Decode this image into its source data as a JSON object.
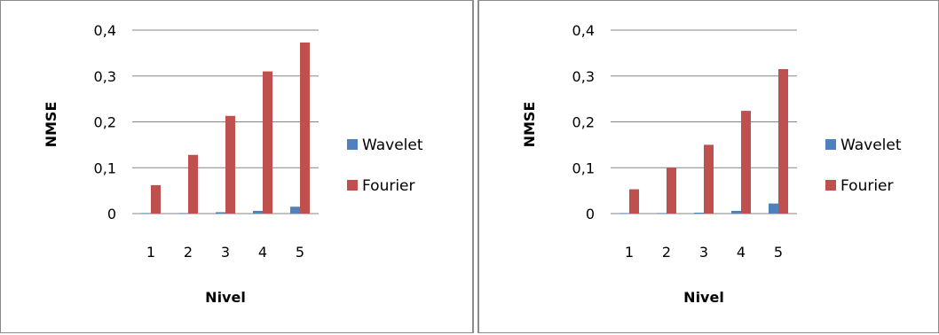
{
  "chart_data": [
    {
      "type": "bar",
      "title": "",
      "xlabel": "Nivel",
      "ylabel": "NMSE",
      "categories": [
        "1",
        "2",
        "3",
        "4",
        "5"
      ],
      "ylim": [
        0,
        0.4
      ],
      "yticks": [
        "0",
        "0,1",
        "0,2",
        "0,3",
        "0,4"
      ],
      "yticks_values": [
        0,
        0.1,
        0.2,
        0.3,
        0.4
      ],
      "grid": true,
      "legend_position": "right",
      "series": [
        {
          "name": "Wavelet",
          "color": "#4f81bd",
          "values": [
            0.0005,
            0.001,
            0.003,
            0.006,
            0.015
          ]
        },
        {
          "name": "Fourier",
          "color": "#c0504d",
          "values": [
            0.062,
            0.128,
            0.213,
            0.31,
            0.373
          ]
        }
      ]
    },
    {
      "type": "bar",
      "title": "",
      "xlabel": "Nivel",
      "ylabel": "NMSE",
      "categories": [
        "1",
        "2",
        "3",
        "4",
        "5"
      ],
      "ylim": [
        0,
        0.4
      ],
      "yticks": [
        "0",
        "0,1",
        "0,2",
        "0,3",
        "0,4"
      ],
      "yticks_values": [
        0,
        0.1,
        0.2,
        0.3,
        0.4
      ],
      "grid": true,
      "legend_position": "right",
      "series": [
        {
          "name": "Wavelet",
          "color": "#4f81bd",
          "values": [
            0.0005,
            0.001,
            0.002,
            0.006,
            0.022
          ]
        },
        {
          "name": "Fourier",
          "color": "#c0504d",
          "values": [
            0.053,
            0.1,
            0.15,
            0.224,
            0.315
          ]
        }
      ]
    }
  ]
}
